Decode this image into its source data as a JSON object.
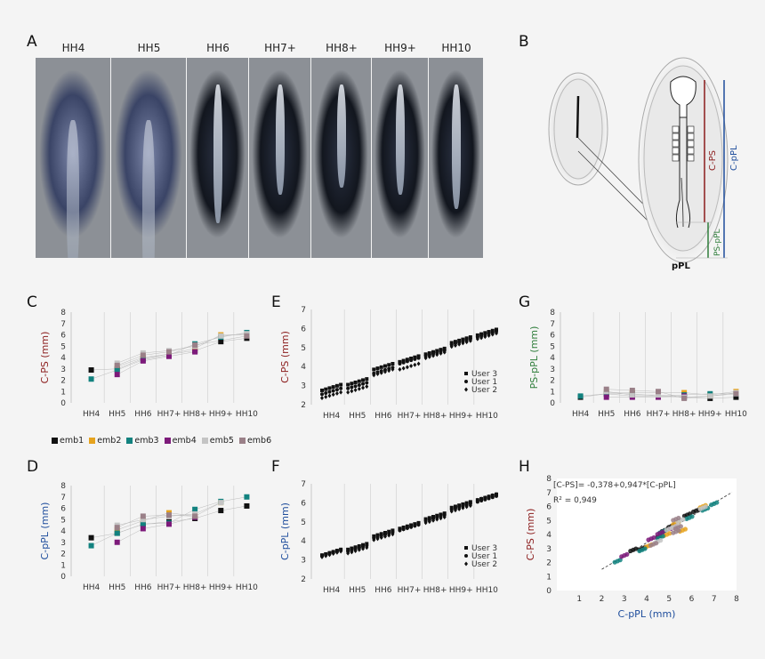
{
  "panel_letters": [
    "A",
    "B",
    "C",
    "D",
    "E",
    "F",
    "G",
    "H"
  ],
  "stages": [
    "HH4",
    "HH5",
    "HH6",
    "HH7+",
    "HH8+",
    "HH9+",
    "HH10"
  ],
  "diagram_b": {
    "label_cps": "C-PS",
    "label_cpl": "C-pPL",
    "label_pspl": "PS-pPL",
    "label_ppl": "pPL"
  },
  "legend_items": [
    {
      "name": "emb1",
      "color": "#111111"
    },
    {
      "name": "emb2",
      "color": "#e6a31e"
    },
    {
      "name": "emb3",
      "color": "#12827f"
    },
    {
      "name": "emb4",
      "color": "#7d1a7a"
    },
    {
      "name": "emb5",
      "color": "#c4c4c4"
    },
    {
      "name": "emb6",
      "color": "#9a8088"
    }
  ],
  "users_legend": [
    "User 3",
    "User 1",
    "User 2"
  ],
  "colors": {
    "red": "#8b1c1c",
    "blue": "#1e4d9c",
    "green": "#2e7d3a"
  },
  "chart_data": [
    {
      "id": "C",
      "type": "scatter",
      "ylabel": "C-PS (mm)",
      "ylim": [
        0,
        8
      ],
      "categories": [
        "HH4",
        "HH5",
        "HH6",
        "HH7+",
        "HH8+",
        "HH9+",
        "HH10"
      ],
      "series": [
        {
          "name": "emb1",
          "values": [
            2.9,
            3.0,
            3.9,
            4.3,
            4.6,
            5.4,
            5.7
          ]
        },
        {
          "name": "emb2",
          "values": [
            null,
            3.2,
            4.0,
            4.3,
            4.8,
            6.0,
            6.0
          ]
        },
        {
          "name": "emb3",
          "values": [
            2.1,
            2.9,
            3.8,
            4.2,
            5.2,
            5.8,
            6.2
          ]
        },
        {
          "name": "emb4",
          "values": [
            null,
            2.5,
            3.7,
            4.1,
            4.5,
            null,
            null
          ]
        },
        {
          "name": "emb5",
          "values": [
            null,
            3.5,
            4.4,
            4.6,
            5.0,
            5.9,
            6.1
          ]
        },
        {
          "name": "emb6",
          "values": [
            null,
            3.3,
            4.2,
            4.5,
            5.1,
            null,
            5.9
          ]
        }
      ]
    },
    {
      "id": "D",
      "type": "scatter",
      "ylabel": "C-pPL (mm)",
      "ylim": [
        0,
        8
      ],
      "categories": [
        "HH4",
        "HH5",
        "HH6",
        "HH7+",
        "HH8+",
        "HH9+",
        "HH10"
      ],
      "series": [
        {
          "name": "emb1",
          "values": [
            3.4,
            3.8,
            4.6,
            4.8,
            5.1,
            5.8,
            6.2
          ]
        },
        {
          "name": "emb2",
          "values": [
            null,
            4.1,
            4.9,
            5.6,
            5.3,
            6.5,
            null
          ]
        },
        {
          "name": "emb3",
          "values": [
            2.7,
            3.8,
            4.6,
            4.7,
            5.9,
            6.6,
            7.0
          ]
        },
        {
          "name": "emb4",
          "values": [
            null,
            3.0,
            4.2,
            4.6,
            5.2,
            null,
            null
          ]
        },
        {
          "name": "emb5",
          "values": [
            null,
            4.5,
            5.0,
            5.3,
            5.5,
            6.5,
            null
          ]
        },
        {
          "name": "emb6",
          "values": [
            null,
            4.3,
            5.3,
            5.4,
            5.3,
            null,
            null
          ]
        }
      ]
    },
    {
      "id": "E",
      "type": "scatter",
      "ylabel": "C-PS (mm)",
      "ylim": [
        2,
        7
      ],
      "categories": [
        "HH4",
        "HH5",
        "HH6",
        "HH7+",
        "HH8+",
        "HH9+",
        "HH10"
      ],
      "series": [
        {
          "name": "User 3",
          "values": [
            2.9,
            3.2,
            4.0,
            4.4,
            4.8,
            5.4,
            5.8
          ]
        },
        {
          "name": "User 1",
          "values": [
            2.7,
            3.0,
            3.8,
            4.3,
            4.7,
            5.3,
            5.7
          ]
        },
        {
          "name": "User 2",
          "values": [
            2.5,
            2.8,
            3.7,
            4.0,
            4.6,
            5.2,
            5.6
          ]
        }
      ]
    },
    {
      "id": "F",
      "type": "scatter",
      "ylabel": "C-pPL (mm)",
      "ylim": [
        2,
        7
      ],
      "categories": [
        "HH4",
        "HH5",
        "HH6",
        "HH7+",
        "HH8+",
        "HH9+",
        "HH10"
      ],
      "series": [
        {
          "name": "User 3",
          "values": [
            3.4,
            3.7,
            4.4,
            4.8,
            5.3,
            5.9,
            6.3
          ]
        },
        {
          "name": "User 1",
          "values": [
            3.4,
            3.6,
            4.3,
            4.7,
            5.2,
            5.8,
            6.2
          ]
        },
        {
          "name": "User 2",
          "values": [
            3.3,
            3.5,
            4.2,
            4.7,
            5.1,
            5.7,
            6.3
          ]
        }
      ]
    },
    {
      "id": "G",
      "type": "scatter",
      "ylabel": "PS-pPL (mm)",
      "ylim": [
        0,
        8
      ],
      "categories": [
        "HH4",
        "HH5",
        "HH6",
        "HH7+",
        "HH8+",
        "HH9+",
        "HH10"
      ],
      "series": [
        {
          "name": "emb1",
          "values": [
            0.5,
            0.8,
            0.6,
            0.6,
            0.5,
            0.4,
            0.5
          ]
        },
        {
          "name": "emb2",
          "values": [
            null,
            0.9,
            0.9,
            0.9,
            0.9,
            0.7,
            1.0
          ]
        },
        {
          "name": "emb3",
          "values": [
            0.6,
            0.8,
            0.8,
            0.6,
            0.7,
            0.8,
            0.8
          ]
        },
        {
          "name": "emb4",
          "values": [
            null,
            0.5,
            0.5,
            0.5,
            0.6,
            null,
            null
          ]
        },
        {
          "name": "emb5",
          "values": [
            null,
            1.0,
            0.7,
            0.7,
            0.5,
            0.6,
            0.9
          ]
        },
        {
          "name": "emb6",
          "values": [
            null,
            1.2,
            1.1,
            1.0,
            0.4,
            null,
            0.8
          ]
        }
      ]
    },
    {
      "id": "H",
      "type": "scatter",
      "xlabel": "C-pPL (mm)",
      "ylabel": "C-PS (mm)",
      "xlim": [
        0,
        8
      ],
      "ylim": [
        0,
        8
      ],
      "equation": "[C-PS]= -0,378+0,947*[C-pPL]",
      "r2": "R² = 0,949",
      "fit": {
        "intercept": -0.378,
        "slope": 0.947
      }
    }
  ]
}
